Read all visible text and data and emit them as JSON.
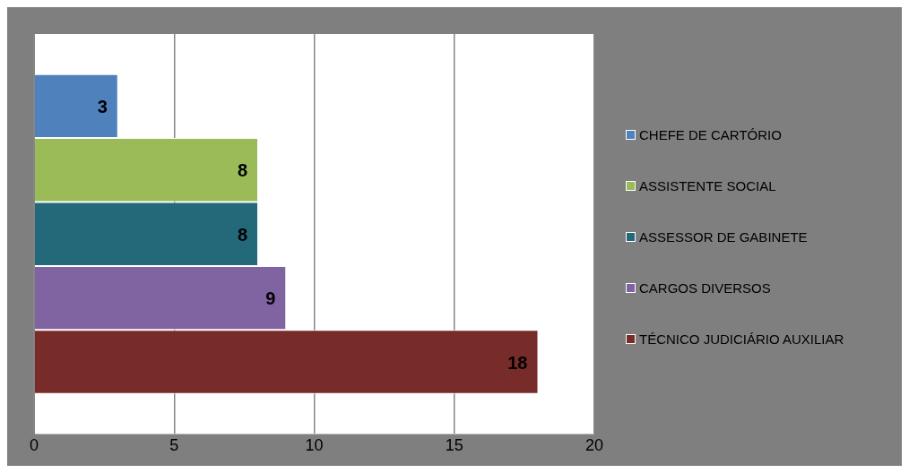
{
  "chart_data": {
    "type": "bar",
    "orientation": "horizontal",
    "categories": [
      null
    ],
    "series": [
      {
        "name": "CHEFE DE CARTÓRIO",
        "color": "#4f81bd",
        "values": [
          3
        ]
      },
      {
        "name": "ASSISTENTE SOCIAL",
        "color": "#9bbb59",
        "values": [
          8
        ]
      },
      {
        "name": "ASSESSOR DE GABINETE",
        "color": "#23697a",
        "values": [
          8
        ]
      },
      {
        "name": "CARGOS DIVERSOS",
        "color": "#8064a2",
        "values": [
          9
        ]
      },
      {
        "name": "TÉCNICO JUDICIÁRIO AUXILIAR",
        "color": "#772c2a",
        "values": [
          18
        ]
      }
    ],
    "xlim": [
      0,
      20
    ],
    "xticks": [
      0,
      5,
      10,
      15,
      20
    ],
    "grid": "x",
    "legend": "right",
    "data_labels": true
  }
}
